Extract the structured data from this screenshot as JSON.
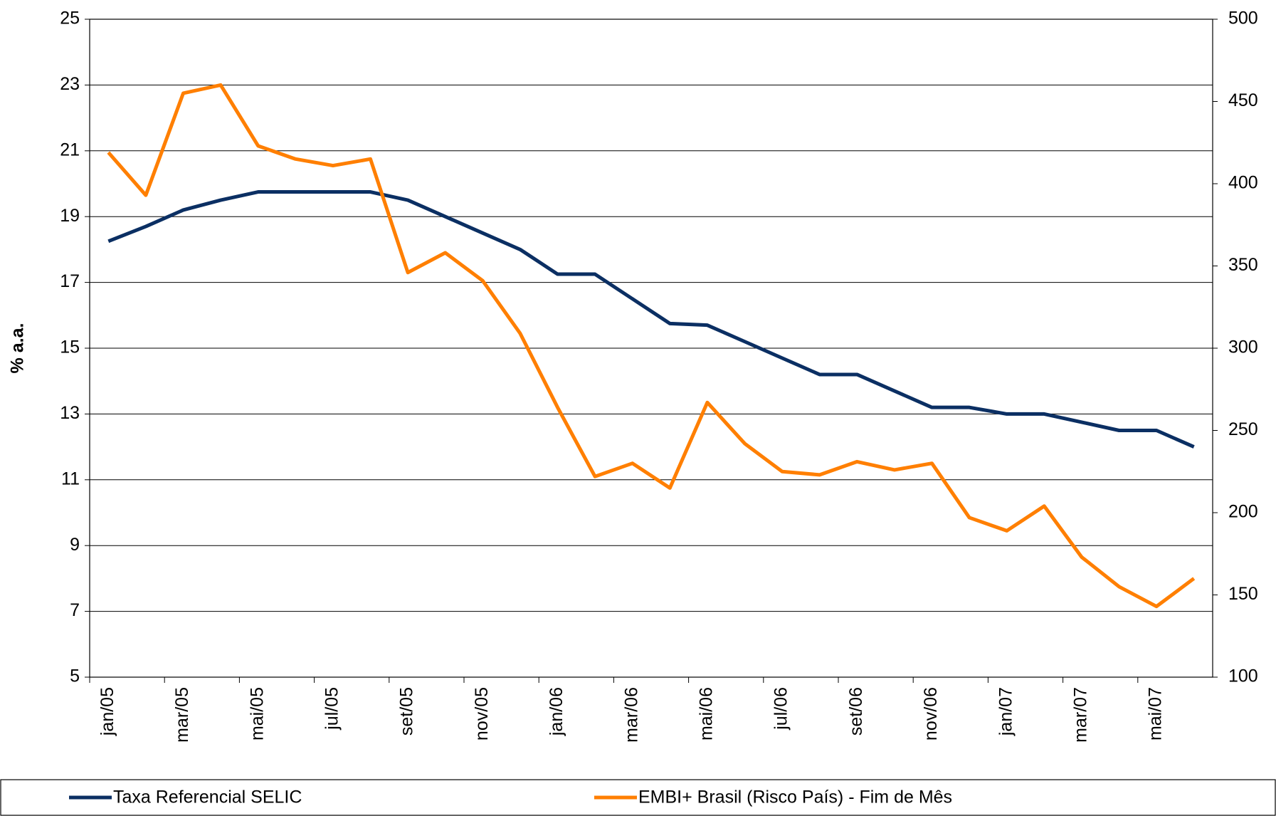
{
  "chart_data": {
    "type": "line",
    "y_label": "% a.a.",
    "categories": [
      "jan/05",
      null,
      "mar/05",
      null,
      "mai/05",
      null,
      "jul/05",
      null,
      "set/05",
      null,
      "nov/05",
      null,
      "jan/06",
      null,
      "mar/06",
      null,
      "mai/06",
      null,
      "jul/06",
      null,
      "set/06",
      null,
      "nov/06",
      null,
      "jan/07",
      null,
      "mar/07",
      null,
      "mai/07",
      null
    ],
    "series": [
      {
        "name": "Taxa Referencial SELIC",
        "color": "#0b2f63",
        "values": [
          18.25,
          18.7,
          19.2,
          19.5,
          19.75,
          19.75,
          19.75,
          19.75,
          19.5,
          19.0,
          18.5,
          18.0,
          17.25,
          17.25,
          16.5,
          15.75,
          15.7,
          15.2,
          14.7,
          14.2,
          14.2,
          13.7,
          13.2,
          13.2,
          13.0,
          13.0,
          12.75,
          12.5,
          12.5,
          12.0
        ]
      },
      {
        "name": "EMBI+ Brasil (Risco País) - Fim de Mês",
        "color": "#ff7f00",
        "axis": "y2",
        "values": [
          419,
          393,
          455,
          460,
          423,
          415,
          411,
          415,
          346,
          358,
          341,
          309,
          264,
          222,
          230,
          215,
          267,
          242,
          225,
          223,
          231,
          226,
          230,
          197,
          189,
          204,
          173,
          155,
          143,
          160
        ]
      }
    ],
    "ylim": [
      5,
      25
    ],
    "yticks": [
      5,
      7,
      9,
      11,
      13,
      15,
      17,
      19,
      21,
      23,
      25
    ],
    "y2lim": [
      100,
      500
    ],
    "y2ticks": [
      100,
      150,
      200,
      250,
      300,
      350,
      400,
      450,
      500
    ],
    "grid": true,
    "legend": "bottom"
  }
}
